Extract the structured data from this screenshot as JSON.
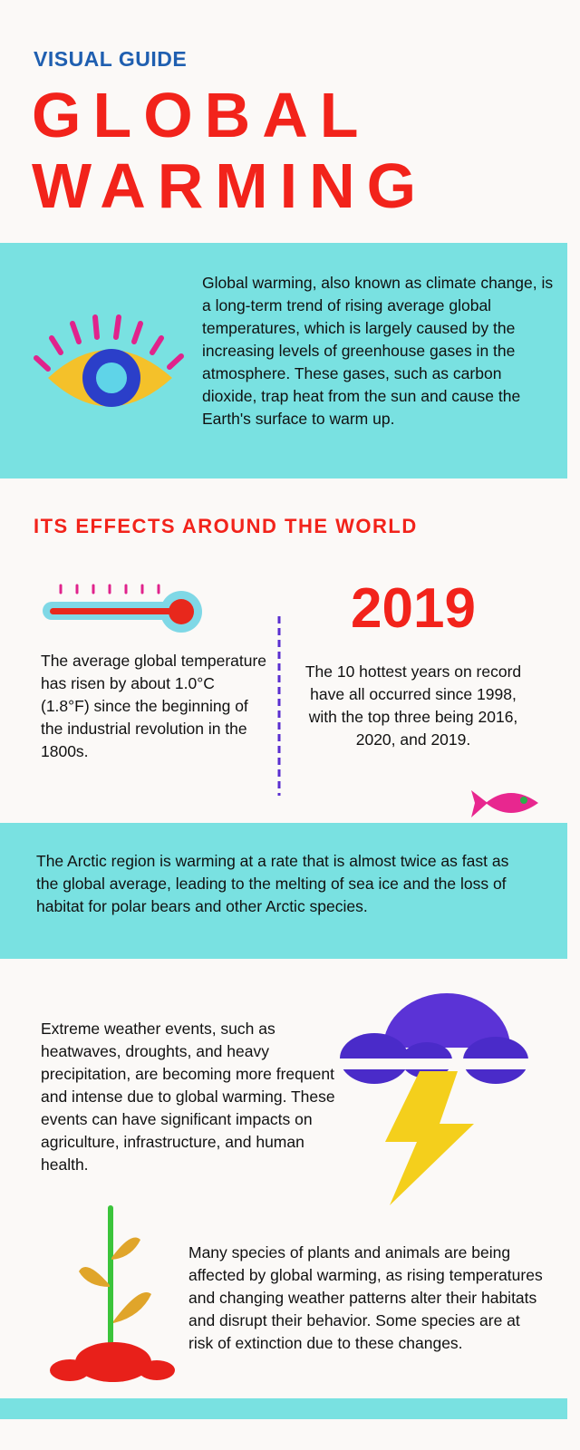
{
  "header": {
    "kicker": "VISUAL GUIDE",
    "title_lines": [
      "GLOBAL",
      "WARMING"
    ]
  },
  "intro": {
    "text": "Global warming, also known as climate change, is a long-term trend of rising average global temperatures, which is largely caused by the increasing levels of greenhouse gases in the atmosphere. These gases, such as carbon dioxide, trap heat from the sun and cause the Earth's surface to warm up."
  },
  "effects": {
    "heading": "ITS EFFECTS AROUND THE WORLD",
    "temperature": {
      "text": "The average global temperature has risen by about 1.0°C (1.8°F) since the beginning of the industrial revolution in the 1800s."
    },
    "year": {
      "big": "2019",
      "text": "The 10 hottest years on record have all occurred since 1998, with the top three being 2016, 2020, and 2019."
    }
  },
  "arctic": {
    "text": "The Arctic region is warming at a rate that is almost twice as fast as the global average, leading to the melting of sea ice and the loss of habitat for polar bears and other Arctic species."
  },
  "weather": {
    "text": "Extreme weather events, such as heatwaves, droughts, and heavy precipitation, are becoming more frequent and intense due to global warming. These events can have significant impacts on agriculture, infrastructure, and human health."
  },
  "species": {
    "text": "Many species of plants and animals are being affected by global warming, as rising temperatures and changing weather patterns alter their habitats and disrupt their behavior. Some species are at risk of extinction due to these changes."
  }
}
